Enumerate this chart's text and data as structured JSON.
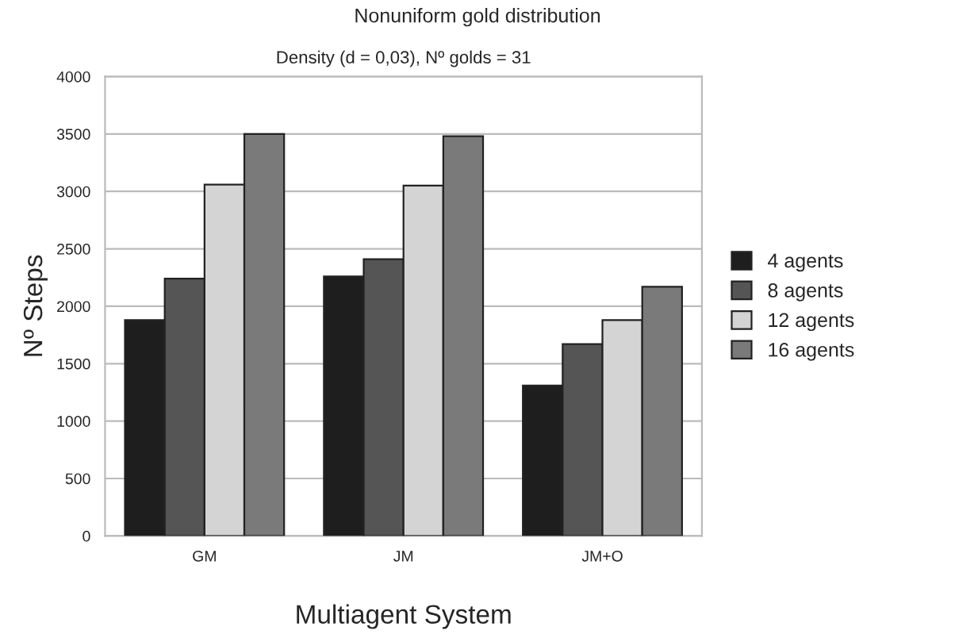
{
  "chart_data": {
    "type": "bar",
    "title": "Nonuniform gold distribution",
    "subtitle": "Density (d = 0,03), Nº golds = 31",
    "xlabel": "Multiagent System",
    "ylabel": "Nº Steps",
    "categories": [
      "GM",
      "JM",
      "JM+O"
    ],
    "series": [
      {
        "name": "4 agents",
        "color": "#1e1e1e",
        "values": [
          1880,
          2260,
          1310
        ]
      },
      {
        "name": "8 agents",
        "color": "#555555",
        "values": [
          2240,
          2410,
          1670
        ]
      },
      {
        "name": "12 agents",
        "color": "#d4d4d4",
        "values": [
          3060,
          3050,
          1880
        ]
      },
      {
        "name": "16 agents",
        "color": "#7a7a7a",
        "values": [
          3500,
          3480,
          2170
        ]
      }
    ],
    "ylim": [
      0,
      4000
    ],
    "yticks": [
      0,
      500,
      1000,
      1500,
      2000,
      2500,
      3000,
      3500,
      4000
    ],
    "grid": "y",
    "legend": "right"
  }
}
